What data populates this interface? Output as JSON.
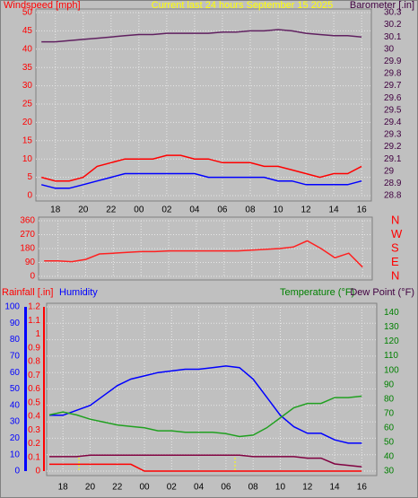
{
  "chart_data": [
    {
      "type": "line",
      "title": "Current last 24 hours September 15 2025",
      "y_label": "Windspeed [mph]",
      "y2_label": "Barometer [.in]",
      "x": [
        0,
        1,
        2,
        3,
        4,
        5,
        6,
        7,
        8,
        9,
        10,
        11,
        12,
        13,
        14,
        15,
        16,
        17,
        18,
        19,
        20,
        21,
        22,
        23
      ],
      "xlim": [
        -0.4,
        23.7
      ],
      "xticks": [
        {
          "value": 1,
          "label": "18"
        },
        {
          "value": 3,
          "label": "20"
        },
        {
          "value": 5,
          "label": "22"
        },
        {
          "value": 7,
          "label": "00"
        },
        {
          "value": 9,
          "label": "02"
        },
        {
          "value": 11,
          "label": "04"
        },
        {
          "value": 13,
          "label": "06"
        },
        {
          "value": 15,
          "label": "08"
        },
        {
          "value": 17,
          "label": "10"
        },
        {
          "value": 19,
          "label": "12"
        },
        {
          "value": 21,
          "label": "14"
        },
        {
          "value": 23,
          "label": "16"
        }
      ],
      "ylim": [
        0,
        50
      ],
      "yticks": [
        0,
        5,
        10,
        15,
        20,
        25,
        30,
        35,
        40,
        45,
        50
      ],
      "y2lim": [
        28.8,
        30.3
      ],
      "y2ticks": [
        28.8,
        28.9,
        29,
        29.1,
        29.2,
        29.3,
        29.4,
        29.5,
        29.6,
        29.7,
        29.8,
        29.9,
        30,
        30.1,
        30.2,
        30.3
      ],
      "grid": true,
      "series": [
        {
          "color": "#ff0000",
          "values": [
            5,
            4,
            4,
            5,
            8,
            9,
            10,
            10,
            10,
            11,
            11,
            10,
            10,
            9,
            9,
            9,
            8,
            8,
            7,
            6,
            5,
            6,
            6,
            8
          ]
        },
        {
          "color": "#0000ff",
          "values": [
            3,
            2,
            2,
            3,
            4,
            5,
            6,
            6,
            6,
            6,
            6,
            6,
            5,
            5,
            5,
            5,
            5,
            4,
            4,
            3,
            3,
            3,
            3,
            4
          ]
        },
        {
          "color": "#602060",
          "axis": "y2",
          "values": [
            30.06,
            30.06,
            30.07,
            30.08,
            30.09,
            30.1,
            30.11,
            30.12,
            30.12,
            30.13,
            30.13,
            30.13,
            30.13,
            30.14,
            30.14,
            30.15,
            30.15,
            30.16,
            30.15,
            30.13,
            30.12,
            30.11,
            30.11,
            30.1
          ]
        }
      ]
    },
    {
      "type": "line",
      "x": [
        0,
        1,
        2,
        3,
        4,
        5,
        6,
        7,
        8,
        9,
        10,
        11,
        12,
        13,
        14,
        15,
        16,
        17,
        18,
        19,
        20,
        21,
        22,
        23
      ],
      "xlim": [
        -0.4,
        23.7
      ],
      "xticks": [
        {
          "value": 1,
          "label": "18"
        },
        {
          "value": 3,
          "label": "20"
        },
        {
          "value": 5,
          "label": "22"
        },
        {
          "value": 7,
          "label": "00"
        },
        {
          "value": 9,
          "label": "02"
        },
        {
          "value": 11,
          "label": "04"
        },
        {
          "value": 13,
          "label": "06"
        },
        {
          "value": 15,
          "label": "08"
        },
        {
          "value": 17,
          "label": "10"
        },
        {
          "value": 19,
          "label": "12"
        },
        {
          "value": 21,
          "label": "14"
        },
        {
          "value": 23,
          "label": "16"
        }
      ],
      "ylim": [
        0,
        360
      ],
      "yticks": [
        0,
        90,
        180,
        270,
        360
      ],
      "y2lim": [
        0,
        360
      ],
      "y2ticks": [
        {
          "value": 0,
          "label": "N"
        },
        {
          "value": 90,
          "label": "E"
        },
        {
          "value": 180,
          "label": "S"
        },
        {
          "value": 270,
          "label": "W"
        },
        {
          "value": 360,
          "label": "N"
        }
      ],
      "grid": true,
      "series": [
        {
          "color": "#ff2020",
          "values": [
            100,
            100,
            95,
            110,
            145,
            150,
            155,
            160,
            160,
            165,
            165,
            165,
            165,
            165,
            165,
            170,
            175,
            180,
            190,
            230,
            180,
            120,
            150,
            60
          ]
        }
      ]
    },
    {
      "type": "line",
      "rain_label": "Rainfall [.in]",
      "y_label": "Humidity",
      "y2_label": "Temperature (°F)",
      "dew_label": "Dew Point (°F)",
      "x": [
        0,
        1,
        2,
        3,
        4,
        5,
        6,
        7,
        8,
        9,
        10,
        11,
        12,
        13,
        14,
        15,
        16,
        17,
        18,
        19,
        20,
        21,
        22,
        23
      ],
      "xlim": [
        -0.2,
        24.1
      ],
      "xticks": [
        {
          "value": 1,
          "label": "18"
        },
        {
          "value": 3,
          "label": "20"
        },
        {
          "value": 5,
          "label": "22"
        },
        {
          "value": 7,
          "label": "00"
        },
        {
          "value": 9,
          "label": "02"
        },
        {
          "value": 11,
          "label": "04"
        },
        {
          "value": 13,
          "label": "06"
        },
        {
          "value": 15,
          "label": "08"
        },
        {
          "value": 17,
          "label": "10"
        },
        {
          "value": 19,
          "label": "12"
        },
        {
          "value": 21,
          "label": "14"
        },
        {
          "value": 23,
          "label": "16"
        }
      ],
      "ylim": [
        0,
        100
      ],
      "yticks": [
        0,
        10,
        20,
        30,
        40,
        50,
        60,
        70,
        80,
        90,
        100
      ],
      "y2lim": [
        30,
        144
      ],
      "y2ticks": [
        30,
        40,
        50,
        60,
        70,
        80,
        90,
        100,
        110,
        120,
        130,
        140
      ],
      "y3lim": [
        0,
        1.2
      ],
      "y3ticks": [
        0,
        0.1,
        0.2,
        0.3,
        0.4,
        0.5,
        0.6,
        0.7,
        0.8,
        0.9,
        1,
        1.1,
        1.2
      ],
      "grid": true,
      "series": [
        {
          "color": "#ff0000",
          "axis": "y3",
          "values": [
            0.05,
            0.05,
            0.05,
            0.05,
            0.05,
            0.05,
            0.05,
            0,
            0,
            0,
            0,
            0,
            0,
            0,
            0,
            0,
            0,
            0,
            0,
            0,
            0,
            0,
            0,
            0
          ]
        },
        {
          "color": "#0000ff",
          "values": [
            34,
            34,
            37,
            40,
            46,
            52,
            56,
            58,
            60,
            61,
            62,
            62,
            63,
            64,
            63,
            56,
            45,
            34,
            27,
            23,
            23,
            19,
            17,
            17
          ]
        },
        {
          "color": "#20a020",
          "axis": "y2",
          "values": [
            69,
            71,
            69,
            66,
            64,
            62,
            61,
            60,
            58,
            58,
            57,
            57,
            57,
            56,
            54,
            55,
            60,
            67,
            74,
            77,
            77,
            81,
            81,
            82
          ]
        },
        {
          "color": "#800040",
          "axis": "y2",
          "values": [
            40,
            40,
            40,
            41,
            41,
            41,
            41,
            41,
            41,
            41,
            41,
            41,
            41,
            41,
            41,
            40,
            40,
            40,
            40,
            39,
            39,
            35,
            34,
            33
          ]
        }
      ]
    }
  ]
}
